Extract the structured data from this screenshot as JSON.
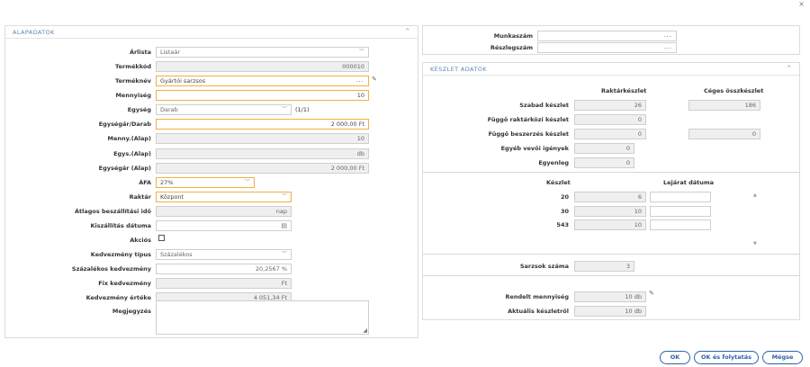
{
  "window": {
    "close_glyph": "×"
  },
  "left_panel": {
    "title": "ALAPADATOK",
    "rows": {
      "arlista": {
        "label": "Árlista",
        "value": "Listaár"
      },
      "termekkod": {
        "label": "Termékkód",
        "value": "000010"
      },
      "termeknev": {
        "label": "Terméknév",
        "value": "Gyártói sarzsos"
      },
      "mennyiseg": {
        "label": "Mennyiség",
        "value": "10"
      },
      "egyseg": {
        "label": "Egység",
        "value": "Darab",
        "extra": "(1/1)"
      },
      "egysegar": {
        "label": "Egységár/Darab",
        "value": "2 000,00 Ft"
      },
      "menny_alap": {
        "label": "Menny.(Alap)",
        "value": "10"
      },
      "egys_alap": {
        "label": "Egys.(Alap)",
        "value": "db"
      },
      "egysegar_alap": {
        "label": "Egységár (Alap)",
        "value": "2 000,00 Ft"
      },
      "afa": {
        "label": "ÁFA",
        "value": "27%"
      },
      "raktar": {
        "label": "Raktár",
        "value": "Központ"
      },
      "atlagos": {
        "label": "Átlagos beszállítási idő",
        "value": "nap"
      },
      "kiszallitas": {
        "label": "Kiszállítás dátuma",
        "value": ""
      },
      "akcios": {
        "label": "Akciós"
      },
      "kedv_tipus": {
        "label": "Kedvezmény típus",
        "value": "Százalékos"
      },
      "szazalekos": {
        "label": "Százalékos kedvezmény",
        "value": "20,2567 %"
      },
      "fix": {
        "label": "Fix kedvezmény",
        "value": "Ft"
      },
      "kedv_ertek": {
        "label": "Kedvezmény értéke",
        "value": "4 051,34 Ft"
      },
      "megjegyzes": {
        "label": "Megjegyzés",
        "value": ""
      }
    }
  },
  "top_right": {
    "munkaszam": {
      "label": "Munkaszám",
      "value": ""
    },
    "reszlegszam": {
      "label": "Részlegszám",
      "value": ""
    }
  },
  "stock_panel": {
    "title": "KÉSZLET ADATOK",
    "col_raktar": "Raktárkészlet",
    "col_ceges": "Céges összkészlet",
    "szabad": {
      "label": "Szabad készlet",
      "raktar": "26",
      "ceges": "186"
    },
    "fuggo_rakt": {
      "label": "Függő raktárközi készlet",
      "raktar": "0"
    },
    "fuggo_besz": {
      "label": "Függő beszerzés készlet",
      "raktar": "0",
      "ceges": "0"
    },
    "egyeb": {
      "label": "Egyéb vevői igények",
      "value": "0"
    },
    "egyenleg": {
      "label": "Egyenleg",
      "value": "0"
    },
    "batch_head_keszlet": "Készlet",
    "batch_head_lejarat": "Lejárat dátuma",
    "batches": [
      {
        "code": "20",
        "qty": "6",
        "expiry": ""
      },
      {
        "code": "30",
        "qty": "10",
        "expiry": ""
      },
      {
        "code": "543",
        "qty": "10",
        "expiry": ""
      }
    ],
    "sarzsok": {
      "label": "Sarzsok száma",
      "value": "3"
    },
    "rendelt": {
      "label": "Rendelt mennyiség",
      "value": "10 db"
    },
    "aktualis": {
      "label": "Aktuális készletről",
      "value": "10 db"
    }
  },
  "buttons": {
    "ok": "OK",
    "ok_continue": "OK és folytatás",
    "cancel": "Mégse"
  }
}
